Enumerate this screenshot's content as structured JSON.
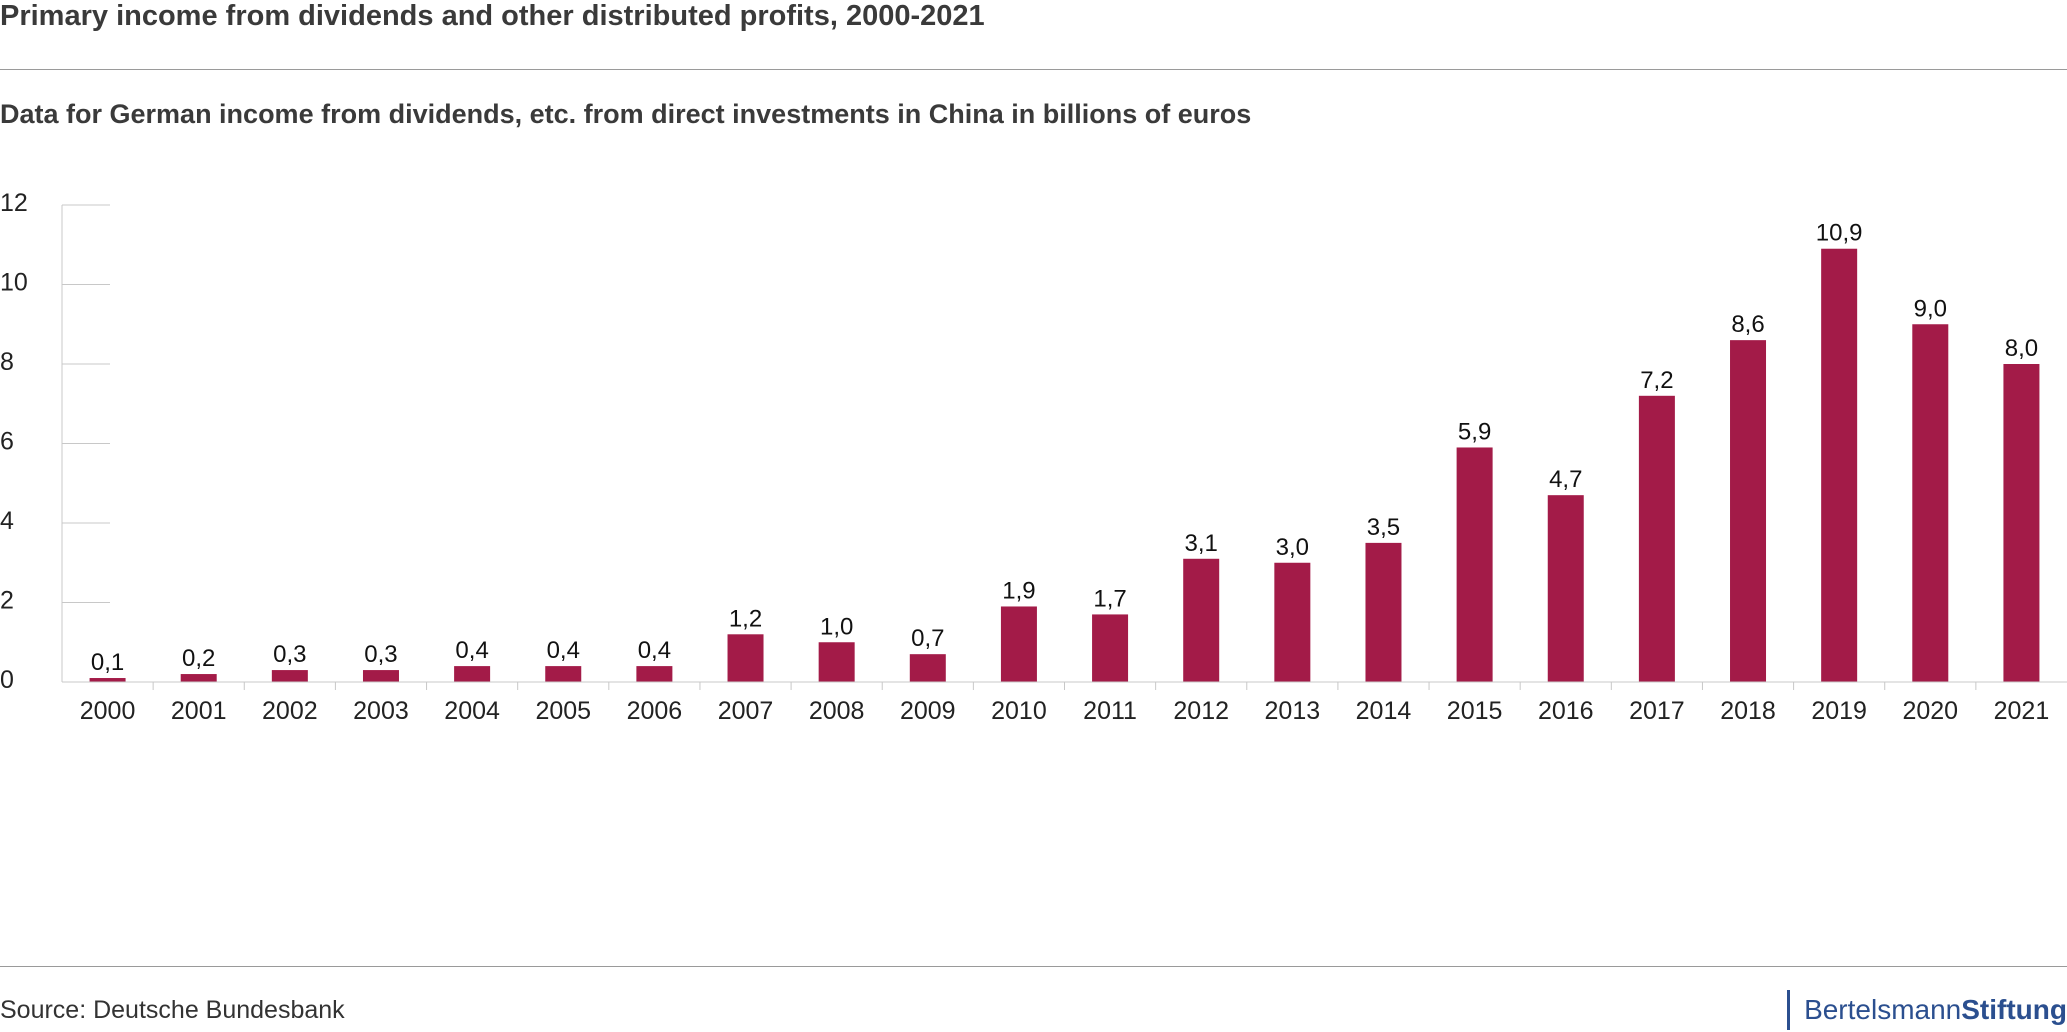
{
  "title": "Primary income from dividends and other distributed profits, 2000-2021",
  "subtitle": "Data for German income from dividends, etc. from direct investments in China in billions of euros",
  "source": "Source: Deutsche Bundesbank",
  "logo": {
    "part1": "Bertelsmann",
    "part2": "Stiftung"
  },
  "colors": {
    "bar": "#a31b48",
    "logo": "#2b4f8f"
  },
  "chart_data": {
    "type": "bar",
    "categories": [
      "2000",
      "2001",
      "2002",
      "2003",
      "2004",
      "2005",
      "2006",
      "2007",
      "2008",
      "2009",
      "2010",
      "2011",
      "2012",
      "2013",
      "2014",
      "2015",
      "2016",
      "2017",
      "2018",
      "2019",
      "2020",
      "2021"
    ],
    "values": [
      0.1,
      0.2,
      0.3,
      0.3,
      0.4,
      0.4,
      0.4,
      1.2,
      1.0,
      0.7,
      1.9,
      1.7,
      3.1,
      3.0,
      3.5,
      5.9,
      4.7,
      7.2,
      8.6,
      10.9,
      9.0,
      8.0
    ],
    "value_labels": [
      "0,1",
      "0,2",
      "0,3",
      "0,3",
      "0,4",
      "0,4",
      "0,4",
      "1,2",
      "1,0",
      "0,7",
      "1,9",
      "1,7",
      "3,1",
      "3,0",
      "3,5",
      "5,9",
      "4,7",
      "7,2",
      "8,6",
      "10,9",
      "9,0",
      "8,0"
    ],
    "yticks": [
      0,
      2,
      4,
      6,
      8,
      10,
      12
    ],
    "ylim": [
      0,
      12
    ],
    "grid": false
  }
}
